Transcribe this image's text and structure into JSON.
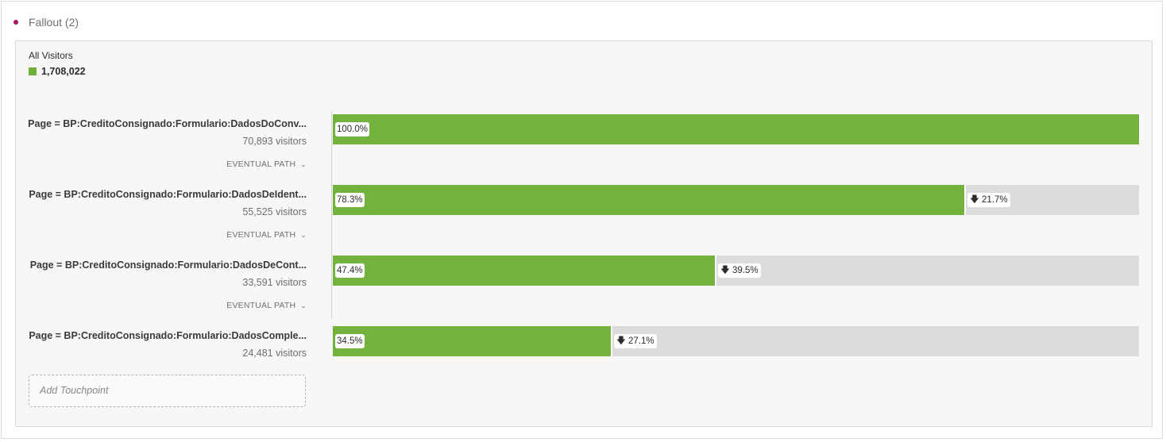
{
  "panel": {
    "title": "Fallout (2)",
    "accent_color": "#a6195a"
  },
  "segment": {
    "name": "All Visitors",
    "count": "1,708,022",
    "color": "#6fb13b"
  },
  "steps": [
    {
      "name": "Page = BP:CreditoConsignado:Formulario:DadosDoConv...",
      "visitors": "70,893 visitors",
      "eventual": "EVENTUAL PATH",
      "percent": "100.0%",
      "fraction": 1.0,
      "drop": ""
    },
    {
      "name": "Page = BP:CreditoConsignado:Formulario:DadosDeIdent...",
      "visitors": "55,525 visitors",
      "eventual": "EVENTUAL PATH",
      "percent": "78.3%",
      "fraction": 0.783,
      "drop": "21.7%"
    },
    {
      "name": "Page = BP:CreditoConsignado:Formulario:DadosDeCont...",
      "visitors": "33,591 visitors",
      "eventual": "EVENTUAL PATH",
      "percent": "47.4%",
      "fraction": 0.474,
      "drop": "39.5%"
    },
    {
      "name": "Page = BP:CreditoConsignado:Formulario:DadosComple...",
      "visitors": "24,481 visitors",
      "eventual": "",
      "percent": "34.5%",
      "fraction": 0.345,
      "drop": "27.1%"
    }
  ],
  "add_touchpoint": {
    "placeholder": "Add Touchpoint"
  },
  "icons": {
    "drop": "arrow-down-icon",
    "eventual": "chevron-down-icon"
  }
}
